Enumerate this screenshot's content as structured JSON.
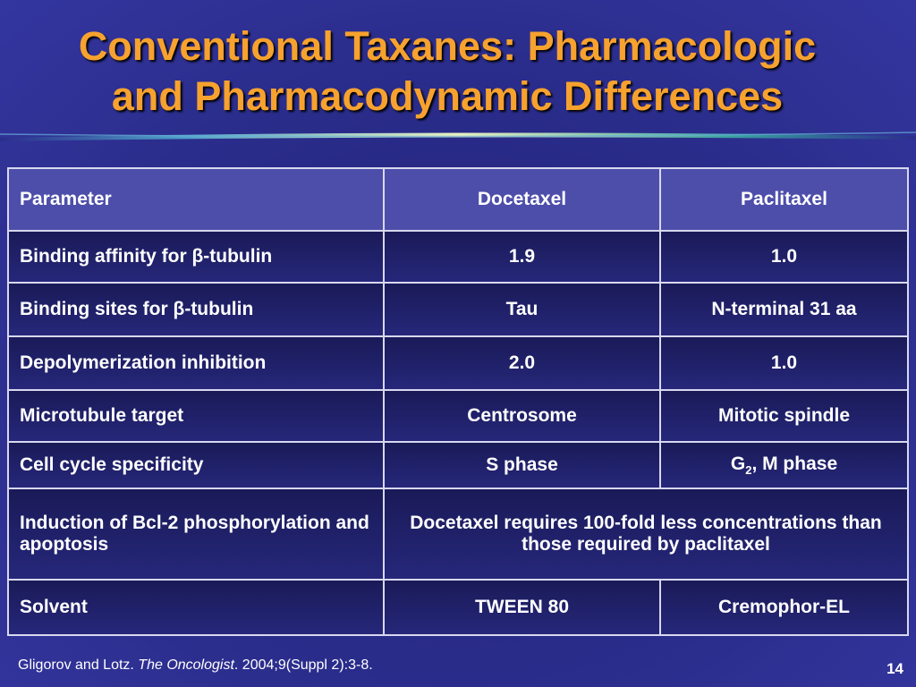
{
  "title": [
    "Conventional Taxanes: Pharmacologic",
    "and Pharmacodynamic Differences"
  ],
  "table": {
    "header": [
      "Parameter",
      "Docetaxel",
      "Paclitaxel"
    ],
    "rows": [
      [
        "Binding affinity for β-tubulin",
        "1.9",
        "1.0"
      ],
      [
        "Binding sites for β-tubulin",
        "Tau",
        "N-terminal 31 aa"
      ],
      [
        "Depolymerization inhibition",
        "2.0",
        "1.0"
      ],
      [
        "Microtubule target",
        "Centrosome",
        "Mitotic spindle"
      ],
      [
        "Cell cycle specificity",
        "S phase",
        {
          "base": "G",
          "sub": "2",
          "rest": ", M phase"
        }
      ],
      [
        "Induction of Bcl-2 phosphorylation and apoptosis",
        "Docetaxel requires 100-fold less concentrations than those required by paclitaxel"
      ],
      [
        "Solvent",
        "TWEEN 80",
        "Cremophor-EL"
      ]
    ]
  },
  "citation": {
    "authors": "Gligorov and Lotz. ",
    "journal": "The Oncologist",
    "details": ". 2004;9(Suppl 2):3-8."
  },
  "page_number": "14"
}
